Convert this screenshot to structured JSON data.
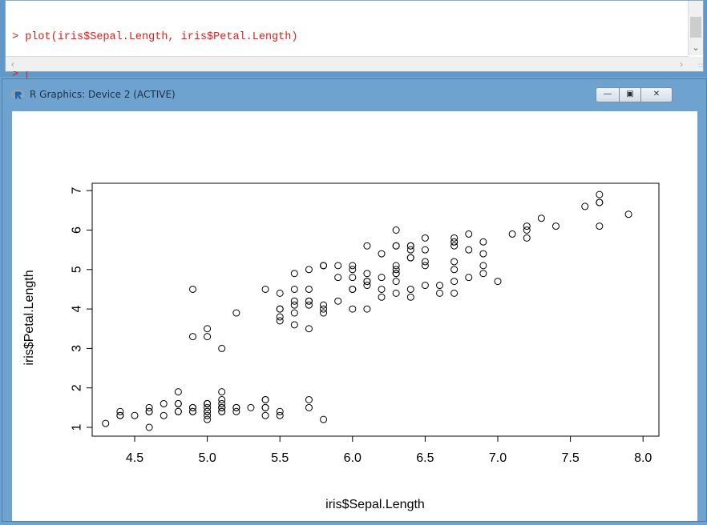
{
  "console": {
    "lines": [
      "> plot(iris$Sepal.Length, iris$Petal.Length)",
      "> "
    ]
  },
  "graphics_window": {
    "title": "R Graphics: Device 2 (ACTIVE)",
    "logo_icon": "r-logo-icon",
    "controls": [
      "minimize-icon",
      "maximize-icon",
      "close-icon"
    ]
  },
  "chart_data": {
    "type": "scatter",
    "title": "",
    "xlabel": "iris$Sepal.Length",
    "ylabel": "iris$Petal.Length",
    "xlim": [
      4.3,
      7.9
    ],
    "ylim": [
      1.0,
      6.9
    ],
    "x_ticks": [
      "4.5",
      "5.0",
      "5.5",
      "6.0",
      "6.5",
      "7.0",
      "7.5",
      "8.0"
    ],
    "y_ticks": [
      "1",
      "2",
      "3",
      "4",
      "5",
      "6",
      "7"
    ],
    "grid": false,
    "point_style": "open-circle",
    "series": [
      {
        "x": [
          5.1,
          4.9,
          4.7,
          4.6,
          5.0,
          5.4,
          4.6,
          5.0,
          4.4,
          4.9,
          5.4,
          4.8,
          4.8,
          4.3,
          5.8,
          5.7,
          5.4,
          5.1,
          5.7,
          5.1,
          5.4,
          5.1,
          4.6,
          5.1,
          4.8,
          5.0,
          5.0,
          5.2,
          5.2,
          4.7,
          4.8,
          5.4,
          5.2,
          5.5,
          4.9,
          5.0,
          5.5,
          4.9,
          4.4,
          5.1,
          5.0,
          4.5,
          4.4,
          5.0,
          5.1,
          4.8,
          5.1,
          4.6,
          5.3,
          5.0,
          7.0,
          6.4,
          6.9,
          5.5,
          6.5,
          5.7,
          6.3,
          4.9,
          6.6,
          5.2,
          5.0,
          5.9,
          6.0,
          6.1,
          5.6,
          6.7,
          5.6,
          5.8,
          6.2,
          5.6,
          5.9,
          6.1,
          6.3,
          6.1,
          6.4,
          6.6,
          6.8,
          6.7,
          6.0,
          5.7,
          5.5,
          5.5,
          5.8,
          6.0,
          5.4,
          6.0,
          6.7,
          6.3,
          5.6,
          5.5,
          5.5,
          6.1,
          5.8,
          5.0,
          5.6,
          5.7,
          5.7,
          6.2,
          5.1,
          5.7,
          6.3,
          5.8,
          7.1,
          6.3,
          6.5,
          7.6,
          4.9,
          7.3,
          6.7,
          7.2,
          6.5,
          6.4,
          6.8,
          5.7,
          5.8,
          6.4,
          6.5,
          7.7,
          7.7,
          6.0,
          6.9,
          5.6,
          7.7,
          6.3,
          6.7,
          7.2,
          6.2,
          6.1,
          6.4,
          7.2,
          7.4,
          7.9,
          6.4,
          6.3,
          6.1,
          7.7,
          6.3,
          6.4,
          6.0,
          6.9,
          6.7,
          6.9,
          5.8,
          6.8,
          6.7,
          6.7,
          6.3,
          6.5,
          6.2,
          5.9
        ],
        "y": [
          1.4,
          1.4,
          1.3,
          1.5,
          1.4,
          1.7,
          1.4,
          1.5,
          1.4,
          1.5,
          1.5,
          1.6,
          1.4,
          1.1,
          1.2,
          1.5,
          1.3,
          1.4,
          1.7,
          1.5,
          1.7,
          1.5,
          1.0,
          1.7,
          1.9,
          1.6,
          1.6,
          1.5,
          1.4,
          1.6,
          1.6,
          1.5,
          1.5,
          1.4,
          1.5,
          1.2,
          1.3,
          1.4,
          1.3,
          1.5,
          1.3,
          1.3,
          1.3,
          1.6,
          1.9,
          1.4,
          1.6,
          1.4,
          1.5,
          1.4,
          4.7,
          4.5,
          4.9,
          4.0,
          4.6,
          4.5,
          4.7,
          3.3,
          4.6,
          3.9,
          3.5,
          4.2,
          4.0,
          4.7,
          3.6,
          4.4,
          4.5,
          4.1,
          4.5,
          3.9,
          4.8,
          4.0,
          4.9,
          4.7,
          4.3,
          4.4,
          4.8,
          5.0,
          4.5,
          3.5,
          3.8,
          3.7,
          3.9,
          5.1,
          4.5,
          4.5,
          4.7,
          4.4,
          4.1,
          4.0,
          4.4,
          4.6,
          4.0,
          3.3,
          4.2,
          4.2,
          4.2,
          4.3,
          3.0,
          4.1,
          6.0,
          5.1,
          5.9,
          5.6,
          5.8,
          6.6,
          4.5,
          6.3,
          5.8,
          6.1,
          5.1,
          5.3,
          5.5,
          5.0,
          5.1,
          5.3,
          5.5,
          6.7,
          6.9,
          5.0,
          5.7,
          4.9,
          6.7,
          4.9,
          5.7,
          6.0,
          4.8,
          4.9,
          5.6,
          5.8,
          6.1,
          6.4,
          5.6,
          5.1,
          5.6,
          6.1,
          5.6,
          5.5,
          4.8,
          5.4,
          5.6,
          5.1,
          5.1,
          5.9,
          5.7,
          5.2,
          5.0,
          5.2,
          5.4,
          5.1
        ]
      }
    ]
  }
}
